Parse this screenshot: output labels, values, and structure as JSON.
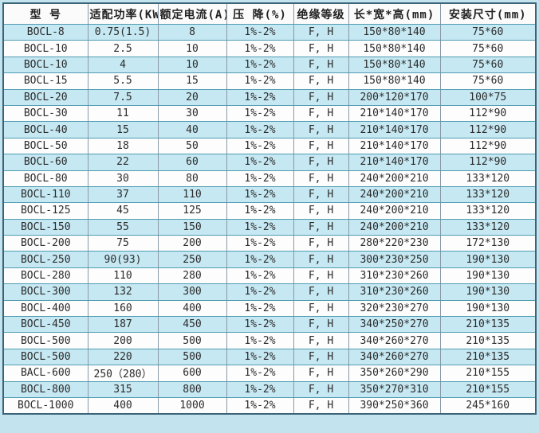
{
  "colors": {
    "page_background": "#c3e3ee",
    "row_alt_blue": "#c6e8f2",
    "row_white": "#fdfdfd",
    "outer_border": "#3c6478",
    "horizontal_rule": "#4f9cb2",
    "vertical_rule": "#8a99a6",
    "text": "#2b2b2b"
  },
  "chart_data": {
    "type": "table",
    "title": "",
    "columns": [
      "型 号",
      "适配功率(KW)",
      "额定电流(A)",
      "压 降(%)",
      "绝缘等级",
      "长*宽*高(mm)",
      "安装尺寸(mm)"
    ],
    "rows": [
      [
        "BOCL-8",
        "0.75(1.5)",
        "8",
        "1%-2%",
        "F, H",
        "150*80*140",
        "75*60"
      ],
      [
        "BOCL-10",
        "2.5",
        "10",
        "1%-2%",
        "F, H",
        "150*80*140",
        "75*60"
      ],
      [
        "BOCL-10",
        "4",
        "10",
        "1%-2%",
        "F, H",
        "150*80*140",
        "75*60"
      ],
      [
        "BOCL-15",
        "5.5",
        "15",
        "1%-2%",
        "F, H",
        "150*80*140",
        "75*60"
      ],
      [
        "BOCL-20",
        "7.5",
        "20",
        "1%-2%",
        "F, H",
        "200*120*170",
        "100*75"
      ],
      [
        "BOCL-30",
        "11",
        "30",
        "1%-2%",
        "F, H",
        "210*140*170",
        "112*90"
      ],
      [
        "BOCL-40",
        "15",
        "40",
        "1%-2%",
        "F, H",
        "210*140*170",
        "112*90"
      ],
      [
        "BOCL-50",
        "18",
        "50",
        "1%-2%",
        "F, H",
        "210*140*170",
        "112*90"
      ],
      [
        "BOCL-60",
        "22",
        "60",
        "1%-2%",
        "F, H",
        "210*140*170",
        "112*90"
      ],
      [
        "BOCL-80",
        "30",
        "80",
        "1%-2%",
        "F, H",
        "240*200*210",
        "133*120"
      ],
      [
        "BOCL-110",
        "37",
        "110",
        "1%-2%",
        "F, H",
        "240*200*210",
        "133*120"
      ],
      [
        "BOCL-125",
        "45",
        "125",
        "1%-2%",
        "F, H",
        "240*200*210",
        "133*120"
      ],
      [
        "BOCL-150",
        "55",
        "150",
        "1%-2%",
        "F, H",
        "240*200*210",
        "133*120"
      ],
      [
        "BOCL-200",
        "75",
        "200",
        "1%-2%",
        "F, H",
        "280*220*230",
        "172*130"
      ],
      [
        "BOCL-250",
        "90(93)",
        "250",
        "1%-2%",
        "F, H",
        "300*230*250",
        "190*130"
      ],
      [
        "BOCL-280",
        "110",
        "280",
        "1%-2%",
        "F, H",
        "310*230*260",
        "190*130"
      ],
      [
        "BOCL-300",
        "132",
        "300",
        "1%-2%",
        "F, H",
        "310*230*260",
        "190*130"
      ],
      [
        "BOCL-400",
        "160",
        "400",
        "1%-2%",
        "F, H",
        "320*230*270",
        "190*130"
      ],
      [
        "BOCL-450",
        "187",
        "450",
        "1%-2%",
        "F, H",
        "340*250*270",
        "210*135"
      ],
      [
        "BOCL-500",
        "200",
        "500",
        "1%-2%",
        "F, H",
        "340*260*270",
        "210*135"
      ],
      [
        "BOCL-500",
        "220",
        "500",
        "1%-2%",
        "F, H",
        "340*260*270",
        "210*135"
      ],
      [
        "BACL-600",
        "250（280）",
        "600",
        "1%-2%",
        "F, H",
        "350*260*290",
        "210*155"
      ],
      [
        "BOCL-800",
        "315",
        "800",
        "1%-2%",
        "F, H",
        "350*270*310",
        "210*155"
      ],
      [
        "BOCL-1000",
        "400",
        "1000",
        "1%-2%",
        "F, H",
        "390*250*360",
        "245*160"
      ]
    ]
  }
}
